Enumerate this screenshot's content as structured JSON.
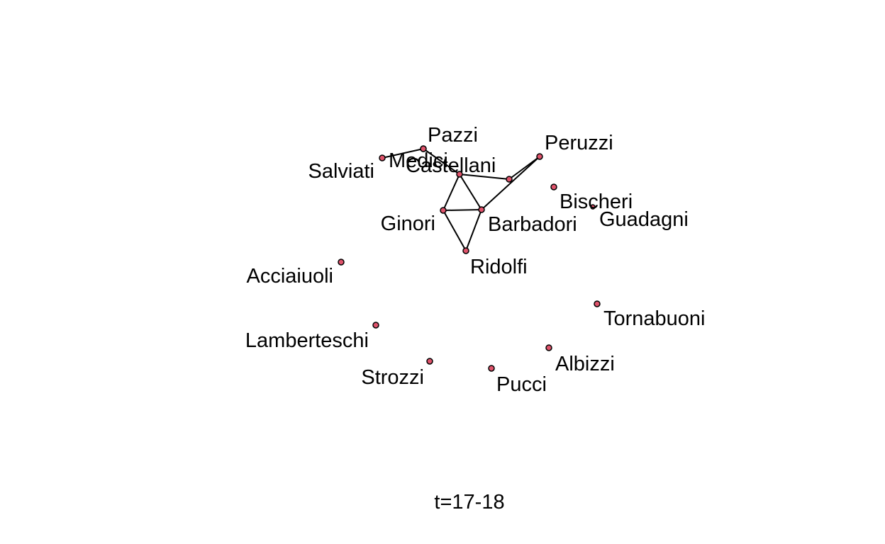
{
  "diagram": {
    "caption": "t=17-18",
    "node_color": "#df536b",
    "edge_color": "#000000",
    "nodes": [
      {
        "id": "salviati",
        "label": "Salviati"
      },
      {
        "id": "medici",
        "label": "Medici"
      },
      {
        "id": "pazzi",
        "label": "Pazzi"
      },
      {
        "id": "castellani",
        "label": "Castellani"
      },
      {
        "id": "peruzzi",
        "label": "Peruzzi"
      },
      {
        "id": "bischeri",
        "label": "Bischeri"
      },
      {
        "id": "guadagni",
        "label": "Guadagni"
      },
      {
        "id": "ginori",
        "label": "Ginori"
      },
      {
        "id": "barbadori",
        "label": "Barbadori"
      },
      {
        "id": "ridolfi",
        "label": "Ridolfi"
      },
      {
        "id": "acciaiuoli",
        "label": "Acciaiuoli"
      },
      {
        "id": "lamberteschi",
        "label": "Lamberteschi"
      },
      {
        "id": "strozzi",
        "label": "Strozzi"
      },
      {
        "id": "pucci",
        "label": "Pucci"
      },
      {
        "id": "albizzi",
        "label": "Albizzi"
      },
      {
        "id": "tornabuoni",
        "label": "Tornabuoni"
      }
    ],
    "edges": [
      {
        "from": "salviati",
        "to": "pazzi"
      },
      {
        "from": "pazzi",
        "to": "castellani"
      },
      {
        "from": "castellani",
        "to": "bischeri"
      },
      {
        "from": "castellani",
        "to": "ginori"
      },
      {
        "from": "castellani",
        "to": "barbadori"
      },
      {
        "from": "ginori",
        "to": "barbadori"
      },
      {
        "from": "ginori",
        "to": "ridolfi"
      },
      {
        "from": "barbadori",
        "to": "ridolfi"
      },
      {
        "from": "barbadori",
        "to": "peruzzi"
      },
      {
        "from": "peruzzi",
        "to": "bischeri"
      }
    ]
  }
}
